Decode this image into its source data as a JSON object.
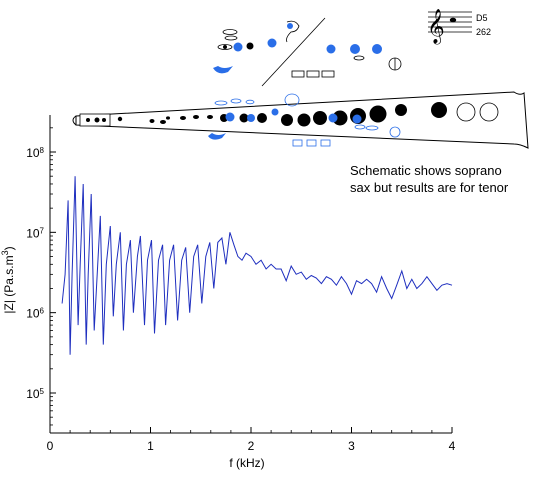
{
  "chart_data": {
    "type": "line",
    "xlabel": "f (kHz)",
    "ylabel_main": "|Z| (Pa.s.m",
    "ylabel_sup": "3",
    "ylabel_close": ")",
    "xlim": [
      0,
      4
    ],
    "ylim": [
      30000.0,
      400000000.0
    ],
    "yscale": "log",
    "xticks": [
      0,
      1,
      2,
      3,
      4
    ],
    "xtick_labels": [
      "0",
      "1",
      "2",
      "3",
      "4"
    ],
    "yticks": [
      100000.0,
      1000000.0,
      10000000.0,
      100000000.0
    ],
    "ytick_labels": [
      {
        "base": "10",
        "exp": "5"
      },
      {
        "base": "10",
        "exp": "6"
      },
      {
        "base": "10",
        "exp": "7"
      },
      {
        "base": "10",
        "exp": "8"
      }
    ],
    "line_color": "#1f2fbf",
    "annotation_lines": [
      "Schematic shows soprano",
      "sax but results are for tenor"
    ],
    "note_name": "D5",
    "note_freq": "262",
    "series": [
      {
        "x": [
          0.12,
          0.15,
          0.18,
          0.2,
          0.22,
          0.25,
          0.28,
          0.3,
          0.33,
          0.36,
          0.38,
          0.41,
          0.44,
          0.47,
          0.5,
          0.53,
          0.56,
          0.6,
          0.63,
          0.66,
          0.7,
          0.73,
          0.76,
          0.8,
          0.83,
          0.87,
          0.9,
          0.94,
          0.97,
          1.01,
          1.04,
          1.08,
          1.12,
          1.15,
          1.19,
          1.23,
          1.27,
          1.31,
          1.35,
          1.39,
          1.43,
          1.47,
          1.51,
          1.55,
          1.59,
          1.63,
          1.67,
          1.71,
          1.75,
          1.79,
          1.83,
          1.87,
          1.91,
          1.95,
          2.0,
          2.05,
          2.1,
          2.15,
          2.2,
          2.25,
          2.3,
          2.35,
          2.4,
          2.45,
          2.5,
          2.55,
          2.6,
          2.65,
          2.7,
          2.75,
          2.8,
          2.85,
          2.9,
          2.95,
          3.0,
          3.05,
          3.1,
          3.15,
          3.2,
          3.25,
          3.3,
          3.35,
          3.4,
          3.45,
          3.5,
          3.55,
          3.6,
          3.65,
          3.7,
          3.75,
          3.8,
          3.85,
          3.9,
          3.95,
          4.0
        ],
        "y": [
          1300000.0,
          3000000.0,
          25000000.0,
          300000.0,
          3000000.0,
          50000000.0,
          700000.0,
          4000000.0,
          40000000.0,
          400000.0,
          3000000.0,
          30000000.0,
          600000.0,
          3000000.0,
          16000000.0,
          400000.0,
          4000000.0,
          12000000.0,
          900000.0,
          4000000.0,
          10000000.0,
          600000.0,
          4000000.0,
          8000000.0,
          1000000.0,
          5000000.0,
          9000000.0,
          700000.0,
          4500000.0,
          8000000.0,
          550000.0,
          4500000.0,
          7000000.0,
          700000.0,
          4500000.0,
          7000000.0,
          800000.0,
          4500000.0,
          6500000.0,
          1000000.0,
          5000000.0,
          7000000.0,
          1300000.0,
          5000000.0,
          7500000.0,
          2000000.0,
          7500000.0,
          8500000.0,
          4000000.0,
          10000000.0,
          7000000.0,
          5000000.0,
          4500000.0,
          5500000.0,
          5000000.0,
          4000000.0,
          4500000.0,
          3500000.0,
          4000000.0,
          3500000.0,
          3500000.0,
          2500000.0,
          3800000.0,
          3000000.0,
          3200000.0,
          2600000.0,
          2900000.0,
          2700000.0,
          2300000.0,
          2800000.0,
          2600000.0,
          2200000.0,
          2800000.0,
          2300000.0,
          1700000.0,
          2500000.0,
          2300000.0,
          2600000.0,
          2300000.0,
          1800000.0,
          2800000.0,
          2000000.0,
          1500000.0,
          2200000.0,
          3300000.0,
          2000000.0,
          2600000.0,
          2000000.0,
          2300000.0,
          2800000.0,
          2300000.0,
          1900000.0,
          2200000.0,
          2300000.0,
          2200000.0
        ]
      }
    ]
  }
}
